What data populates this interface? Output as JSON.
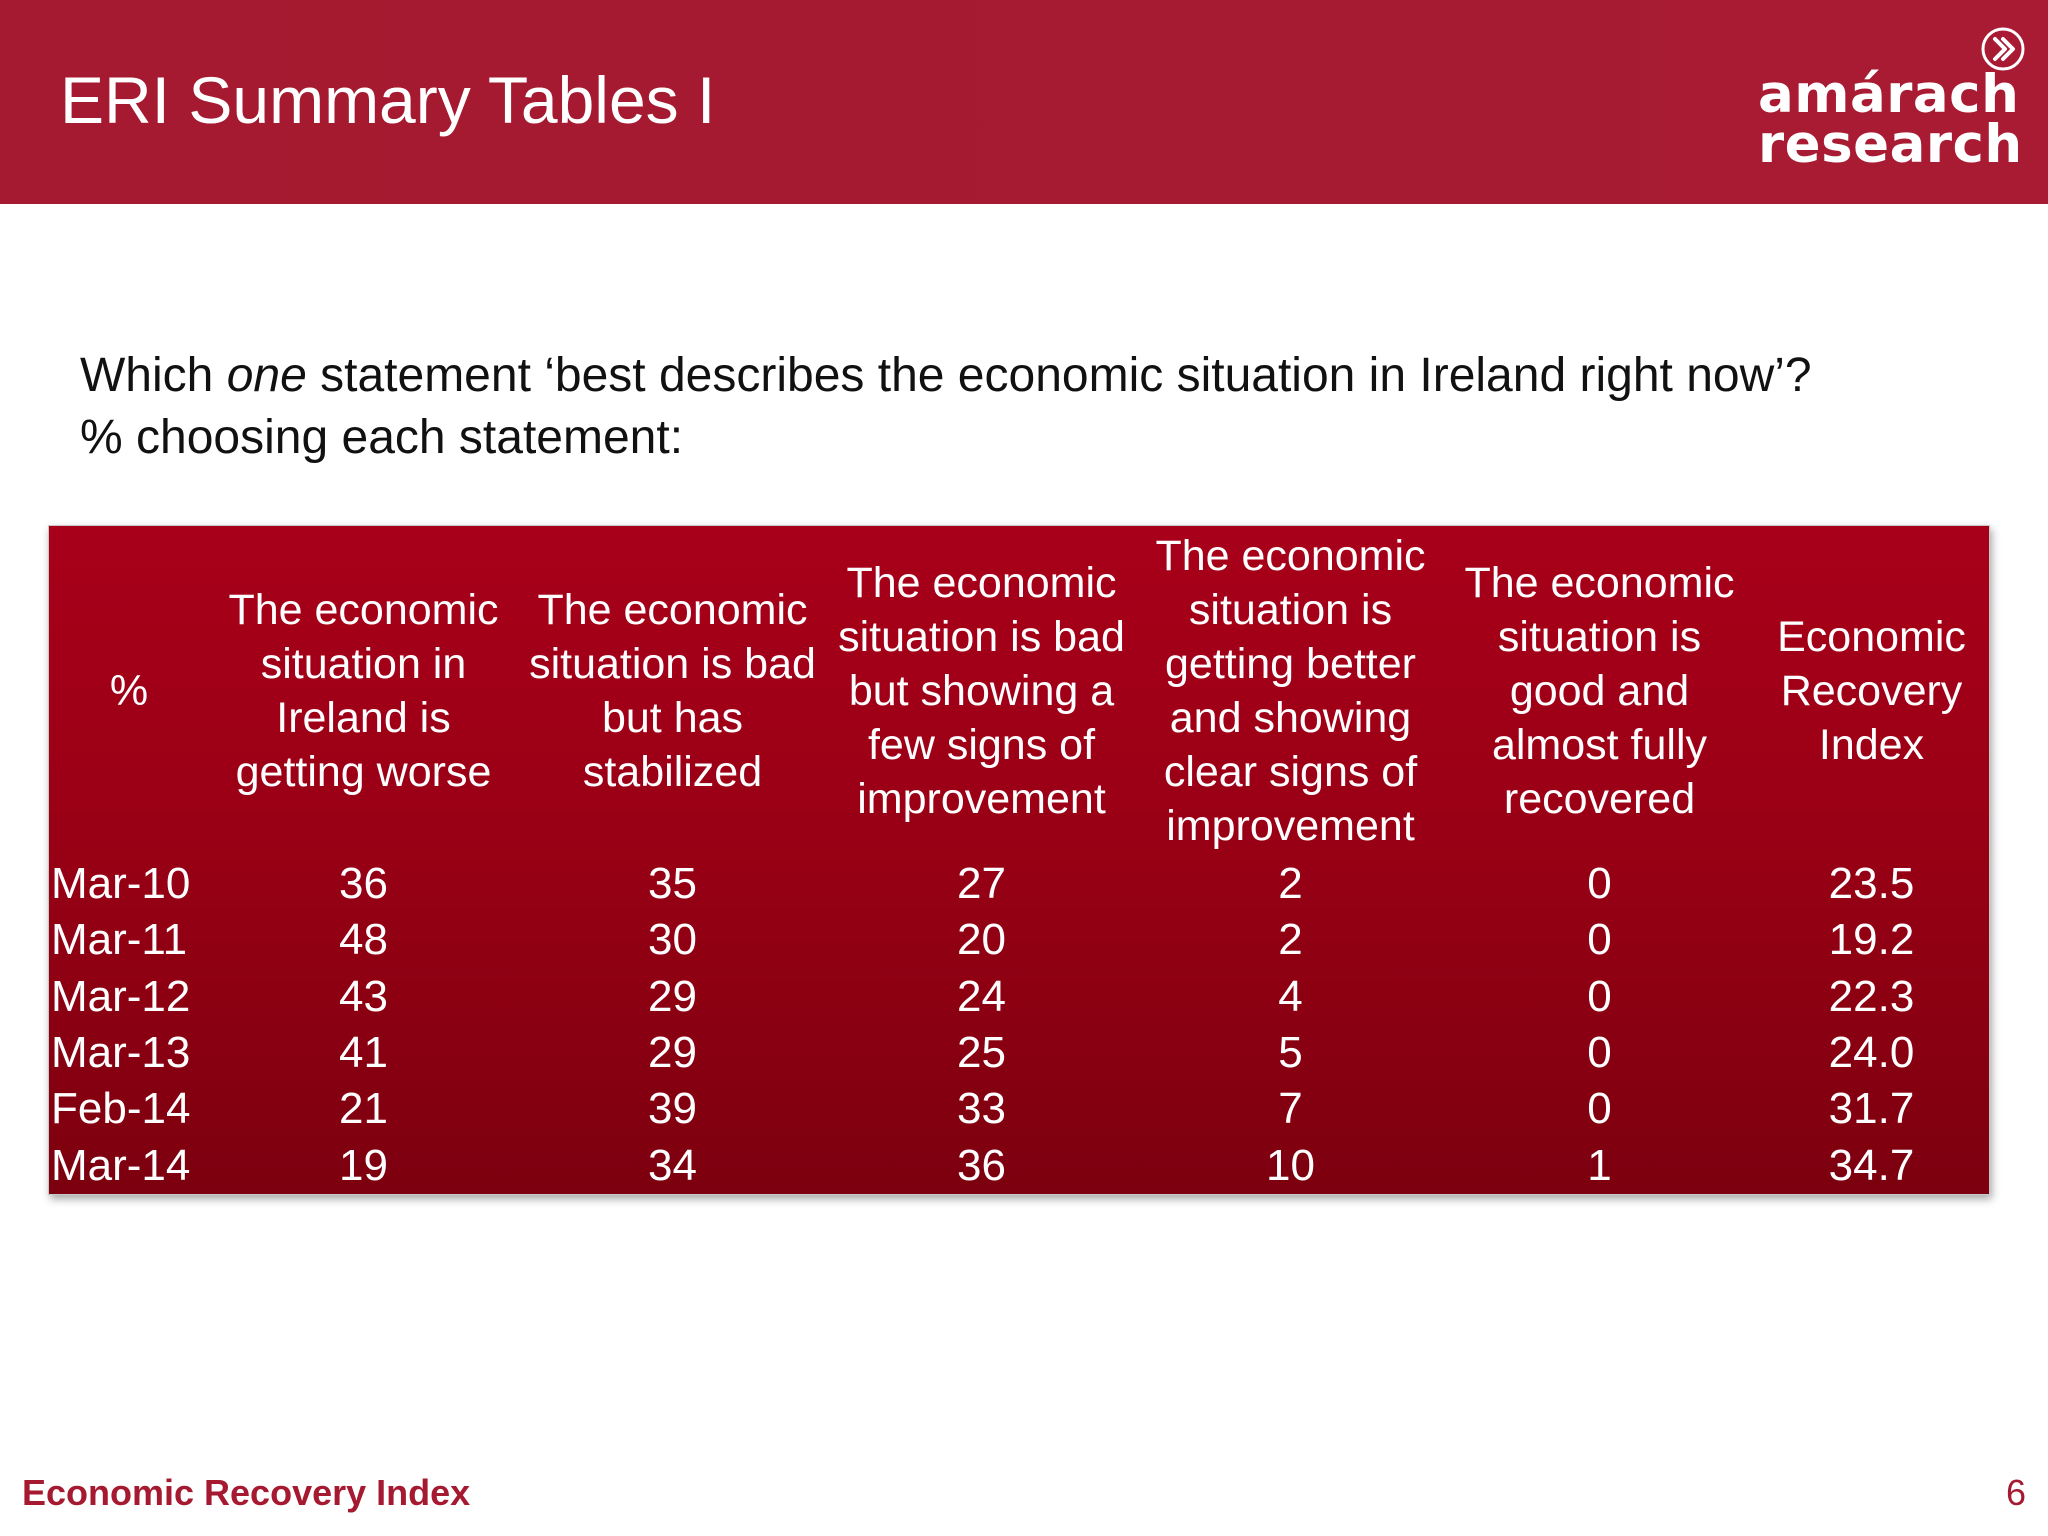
{
  "header": {
    "title": "ERI Summary Tables I",
    "logo_line1": "amárach",
    "logo_line2": "research",
    "logo_icon": "chevron-circle-icon"
  },
  "question": {
    "prefix": "Which ",
    "emphasis": "one",
    "suffix": " statement ‘best describes the economic situation in Ireland right now’?",
    "line2": "% choosing each statement:"
  },
  "table": {
    "corner_label": "%",
    "columns": [
      "The economic situation in Ireland is getting worse",
      "The economic situation is bad but has stabilized",
      "The economic situation is bad but showing a few signs of improvement",
      "The economic situation is getting better and showing clear signs of improvement",
      "The economic situation is good and almost fully recovered",
      "Economic Recovery Index"
    ],
    "rows": [
      {
        "label": "Mar-10",
        "values": [
          "36",
          "35",
          "27",
          "2",
          "0",
          "23.5"
        ]
      },
      {
        "label": "Mar-11",
        "values": [
          "48",
          "30",
          "20",
          "2",
          "0",
          "19.2"
        ]
      },
      {
        "label": "Mar-12",
        "values": [
          "43",
          "29",
          "24",
          "4",
          "0",
          "22.3"
        ]
      },
      {
        "label": "Mar-13",
        "values": [
          "41",
          "29",
          "25",
          "5",
          "0",
          "24.0"
        ]
      },
      {
        "label": "Feb-14",
        "values": [
          "21",
          "39",
          "33",
          "7",
          "0",
          "31.7"
        ]
      },
      {
        "label": "Mar-14",
        "values": [
          "19",
          "34",
          "36",
          "10",
          "1",
          "34.7"
        ]
      }
    ]
  },
  "footer": {
    "left": "Economic Recovery Index",
    "page_number": "6"
  },
  "colors": {
    "brand_red": "#a51a30",
    "table_red_top": "#a8001a",
    "table_red_bottom": "#7c000f"
  }
}
